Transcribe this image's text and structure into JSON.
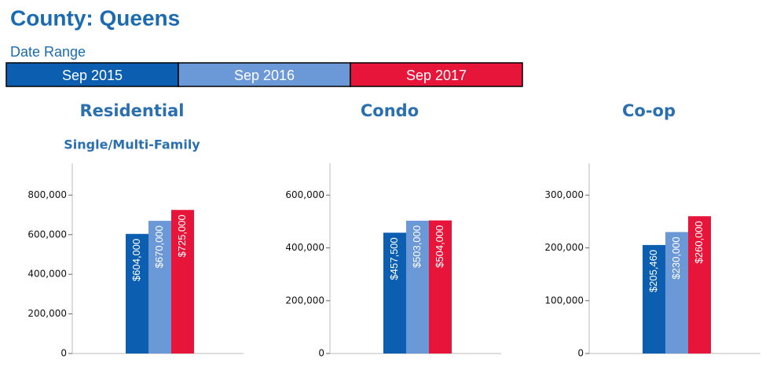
{
  "header": {
    "title": "County: Queens",
    "date_range_label": "Date Range"
  },
  "chart_data": [
    {
      "type": "bar",
      "title": "Residential",
      "subtitle": "Single/Multi-Family",
      "categories": [
        null
      ],
      "series": [
        {
          "name": "Sep 2015",
          "color": "#0c5fb0",
          "values": [
            604000
          ],
          "value_labels": [
            "$604,000"
          ]
        },
        {
          "name": "Sep 2016",
          "color": "#6b98d6",
          "values": [
            670000
          ],
          "value_labels": [
            "$670,000"
          ]
        },
        {
          "name": "Sep 2017",
          "color": "#e8153a",
          "values": [
            725000
          ],
          "value_labels": [
            "$725,000"
          ]
        }
      ],
      "ylim": [
        0,
        960000
      ],
      "yticks": [
        0,
        {
          "value": 200000,
          "label": "200,000"
        },
        {
          "value": 400000,
          "label": "400,000"
        },
        {
          "value": 600000,
          "label": "600,000"
        },
        {
          "value": 800000,
          "label": "800,000"
        }
      ]
    },
    {
      "type": "bar",
      "title": "Condo",
      "categories": [
        null
      ],
      "series": [
        {
          "color": "#0c5fb0",
          "values": [
            457500
          ],
          "value_labels": [
            "$457,500"
          ]
        },
        {
          "color": "#6b98d6",
          "values": [
            503000
          ],
          "value_labels": [
            "$503,000"
          ]
        },
        {
          "color": "#e8153a",
          "values": [
            504000
          ],
          "value_labels": [
            "$504,000"
          ]
        }
      ],
      "ylim": [
        0,
        720000
      ],
      "yticks": [
        0,
        {
          "value": 200000,
          "label": "200,000"
        },
        {
          "value": 400000,
          "label": "400,000"
        },
        {
          "value": 600000,
          "label": "600,000"
        }
      ]
    },
    {
      "type": "bar",
      "title": "Co-op",
      "categories": [
        null
      ],
      "series": [
        {
          "color": "#0c5fb0",
          "values": [
            205460
          ],
          "value_labels": [
            "$205,460"
          ]
        },
        {
          "color": "#6b98d6",
          "values": [
            230000
          ],
          "value_labels": [
            "$230,000"
          ]
        },
        {
          "color": "#e8153a",
          "values": [
            260000
          ],
          "value_labels": [
            "$260,000"
          ]
        }
      ],
      "ylim": [
        0,
        360000
      ],
      "yticks": [
        0,
        {
          "value": 100000,
          "label": "100,000"
        },
        {
          "value": 200000,
          "label": "200,000"
        },
        {
          "value": 300000,
          "label": "300,000"
        }
      ]
    }
  ]
}
